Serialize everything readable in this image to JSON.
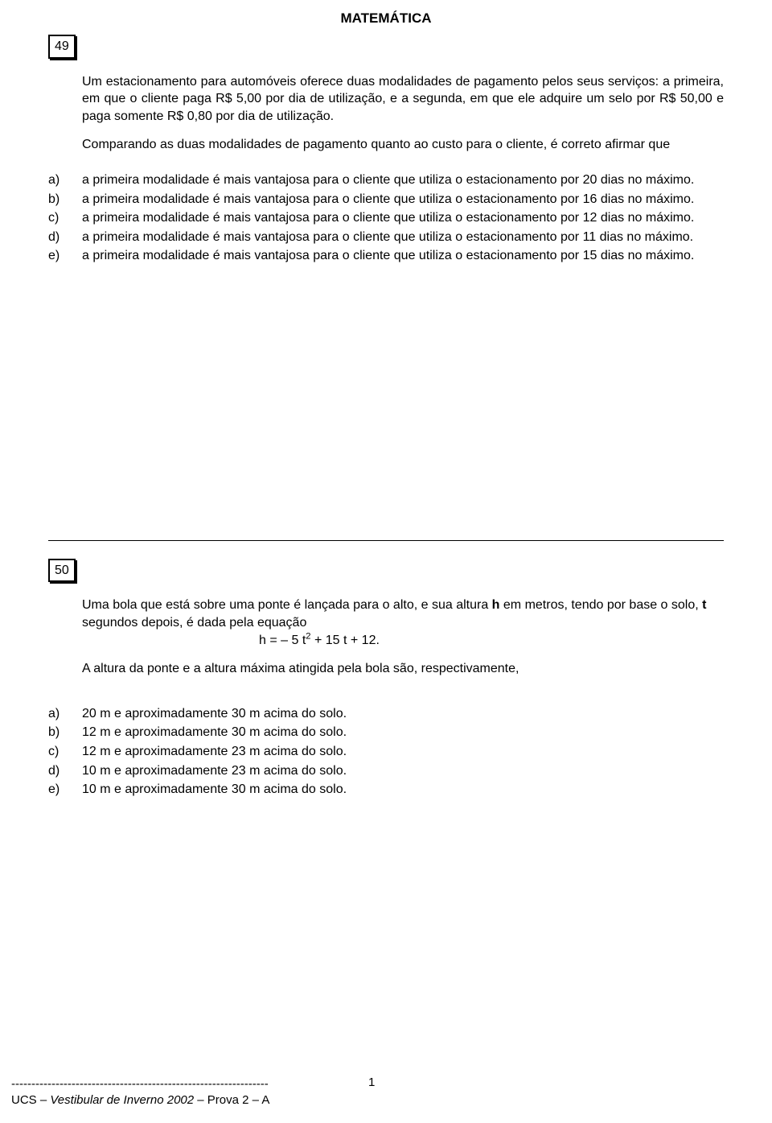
{
  "header": {
    "title": "MATEMÁTICA"
  },
  "q49": {
    "number": "49",
    "stem_p1": "Um estacionamento para automóveis oferece duas modalidades de pagamento pelos seus serviços: a primeira, em que o cliente paga R$ 5,00 por dia de utilização, e a segunda, em que ele adquire um selo por R$ 50,00 e paga somente R$ 0,80 por dia de utilização.",
    "stem_p2": "Comparando as duas modalidades de pagamento quanto ao custo para o cliente, é correto afirmar que",
    "options": [
      {
        "letter": "a)",
        "text": "a primeira modalidade é mais vantajosa para o cliente que utiliza o estacionamento por 20 dias no máximo."
      },
      {
        "letter": "b)",
        "text": "a primeira modalidade é mais vantajosa para o cliente que utiliza o estacionamento por 16 dias no máximo."
      },
      {
        "letter": "c)",
        "text": "a primeira modalidade é mais vantajosa para o cliente que utiliza o estacionamento por 12 dias no máximo."
      },
      {
        "letter": "d)",
        "text": "a primeira modalidade é mais vantajosa para o cliente que utiliza o estacionamento por 11 dias no máximo."
      },
      {
        "letter": "e)",
        "text": "a primeira modalidade é mais vantajosa para o cliente que utiliza o estacionamento por 15 dias no máximo."
      }
    ]
  },
  "q50": {
    "number": "50",
    "stem_p1_pre": "Uma bola que está sobre uma ponte é lançada para o alto, e sua altura ",
    "stem_p1_h": "h",
    "stem_p1_mid": " em metros, tendo por base o solo, ",
    "stem_p1_t": "t",
    "stem_p1_post": " segundos depois, é dada pela equação",
    "equation_lhs": "h = ",
    "equation_rhs": " 5 t",
    "equation_exp": "2",
    "equation_tail": " + 15 t + 12.",
    "stem_p2": "A altura da ponte e a altura máxima atingida pela bola são, respectivamente,",
    "options": [
      {
        "letter": "a)",
        "text": "20 m e aproximadamente 30 m acima do solo."
      },
      {
        "letter": "b)",
        "text": "12 m e aproximadamente 30 m acima do solo."
      },
      {
        "letter": "c)",
        "text": "12 m e aproximadamente 23 m acima do solo."
      },
      {
        "letter": "d)",
        "text": "10 m e aproximadamente 23 m acima do solo."
      },
      {
        "letter": "e)",
        "text": "10 m e aproximadamente 30 m acima do solo."
      }
    ]
  },
  "footer": {
    "source_prefix": "UCS – ",
    "source_italic": "Vestibular de Inverno 2002",
    "source_suffix": " – Prova 2 – A",
    "page": "1",
    "dashes": "----------------------------------------------------------------"
  }
}
